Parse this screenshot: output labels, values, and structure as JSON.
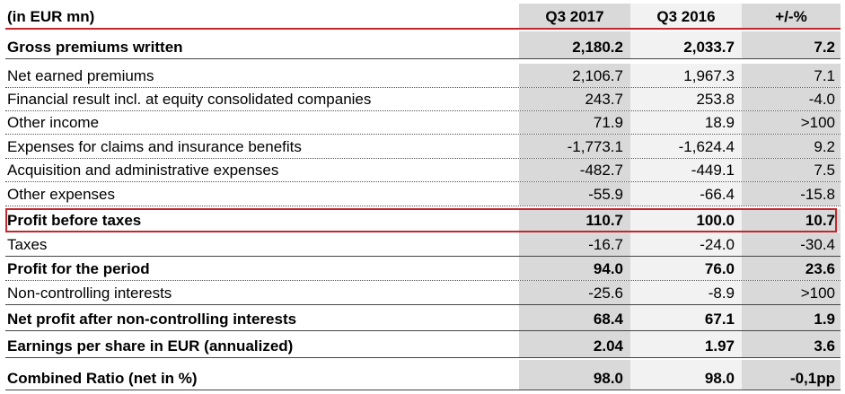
{
  "header": {
    "label": "(in EUR mn)",
    "col1": "Q3 2017",
    "col2": "Q3 2016",
    "col3": "+/-%"
  },
  "rows": [
    {
      "label": "Gross premiums written",
      "v1": "2,180.2",
      "v2": "2,033.7",
      "v3": "7.2"
    },
    {
      "label": "Net earned premiums",
      "v1": "2,106.7",
      "v2": "1,967.3",
      "v3": "7.1"
    },
    {
      "label": "Financial result incl. at equity consolidated companies",
      "v1": "243.7",
      "v2": "253.8",
      "v3": "-4.0"
    },
    {
      "label": "Other income",
      "v1": "71.9",
      "v2": "18.9",
      "v3": ">100"
    },
    {
      "label": "Expenses for claims and insurance benefits",
      "v1": "-1,773.1",
      "v2": "-1,624.4",
      "v3": "9.2"
    },
    {
      "label": "Acquisition and administrative expenses",
      "v1": "-482.7",
      "v2": "-449.1",
      "v3": "7.5"
    },
    {
      "label": "Other expenses",
      "v1": "-55.9",
      "v2": "-66.4",
      "v3": "-15.8"
    },
    {
      "label": "Profit before taxes",
      "v1": "110.7",
      "v2": "100.0",
      "v3": "10.7"
    },
    {
      "label": "Taxes",
      "v1": "-16.7",
      "v2": "-24.0",
      "v3": "-30.4"
    },
    {
      "label": "Profit for the period",
      "v1": "94.0",
      "v2": "76.0",
      "v3": "23.6"
    },
    {
      "label": "Non-controlling interests",
      "v1": "-25.6",
      "v2": "-8.9",
      "v3": ">100"
    },
    {
      "label": "Net profit after non-controlling interests",
      "v1": "68.4",
      "v2": "67.1",
      "v3": "1.9"
    },
    {
      "label": "Earnings per share in EUR (annualized)",
      "v1": "2.04",
      "v2": "1.97",
      "v3": "3.6"
    },
    {
      "label": "Combined Ratio (net in %)",
      "v1": "98.0",
      "v2": "98.0",
      "v3": "-0,1pp"
    }
  ]
}
